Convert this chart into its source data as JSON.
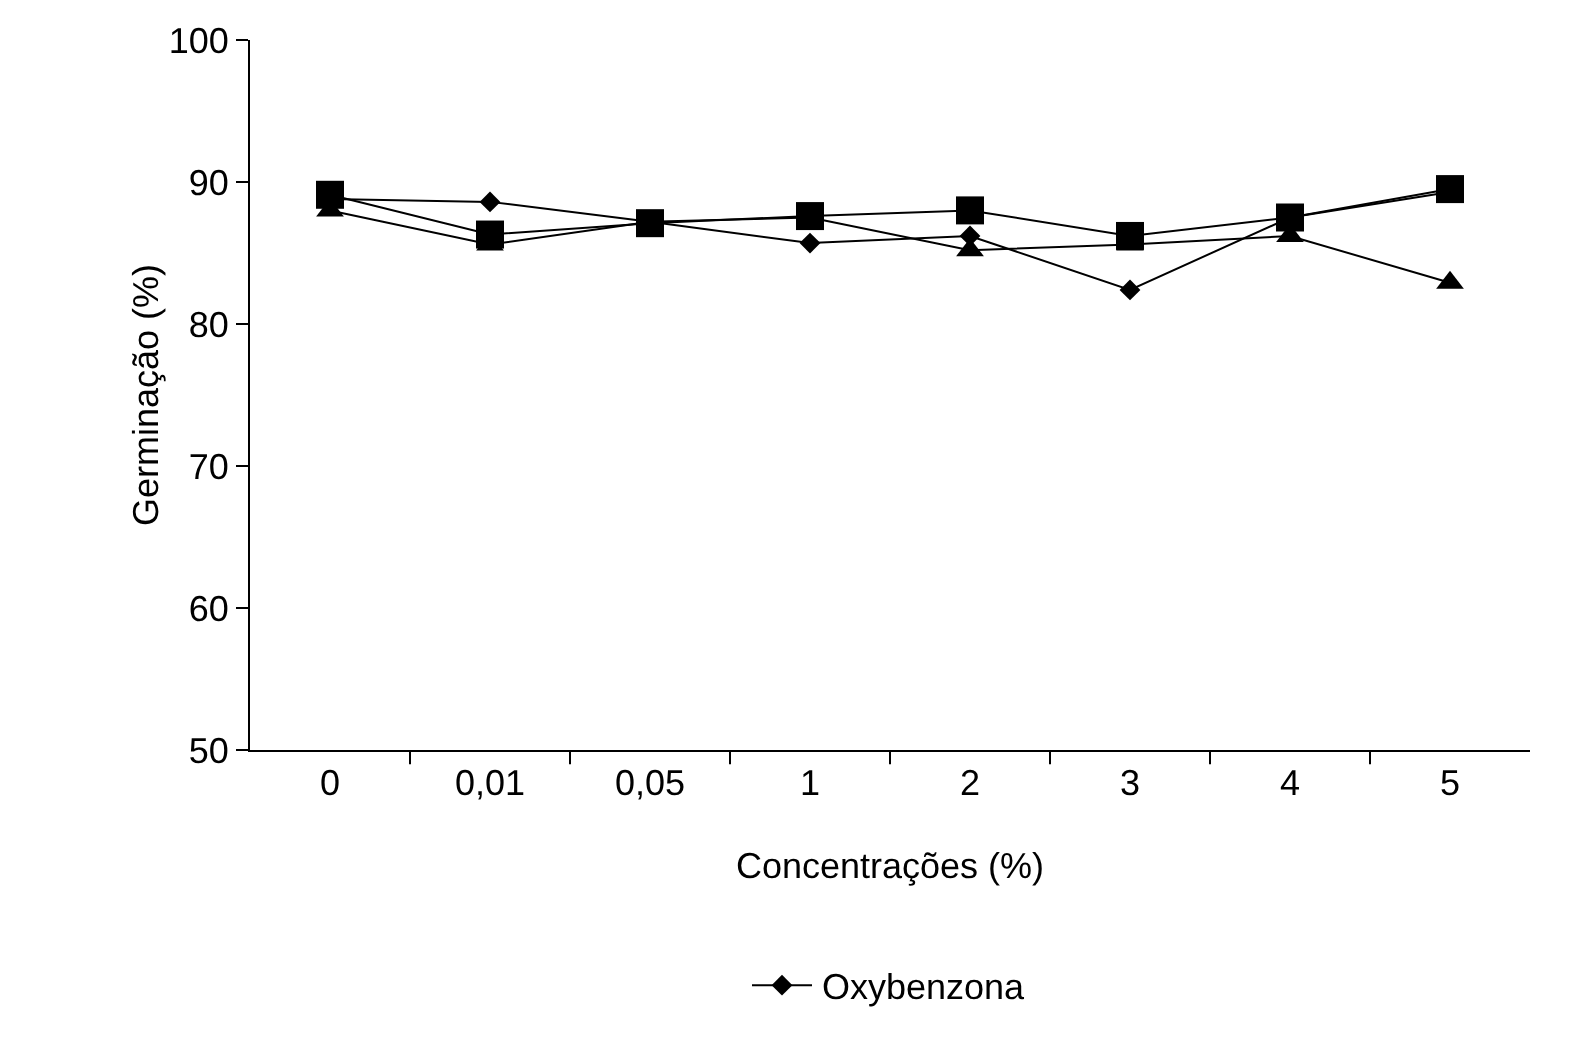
{
  "chart_data": {
    "type": "line",
    "xlabel": "Concentrações (%)",
    "ylabel": "Germinação (%)",
    "categories": [
      "0",
      "0,01",
      "0,05",
      "1",
      "2",
      "3",
      "4",
      "5"
    ],
    "ylim": [
      50,
      100
    ],
    "yticks": [
      50,
      60,
      70,
      80,
      90,
      100
    ],
    "grid": false,
    "legend": "bottom",
    "line_style": "solid",
    "series": [
      {
        "name": "Oxybenzona",
        "color": "#000000",
        "marker": "diamond",
        "values": [
          88.8,
          88.6,
          87.2,
          85.7,
          86.2,
          82.4,
          87.5,
          89.3
        ]
      },
      {
        "color": "#000000",
        "marker": "triangle",
        "values": [
          88,
          85.6,
          87.2,
          87.5,
          85.2,
          85.6,
          86.2,
          82.9
        ]
      },
      {
        "color": "#000000",
        "marker": "square",
        "values": [
          89.1,
          86.3,
          87.1,
          87.6,
          88,
          86.2,
          87.5,
          89.5
        ]
      }
    ]
  }
}
